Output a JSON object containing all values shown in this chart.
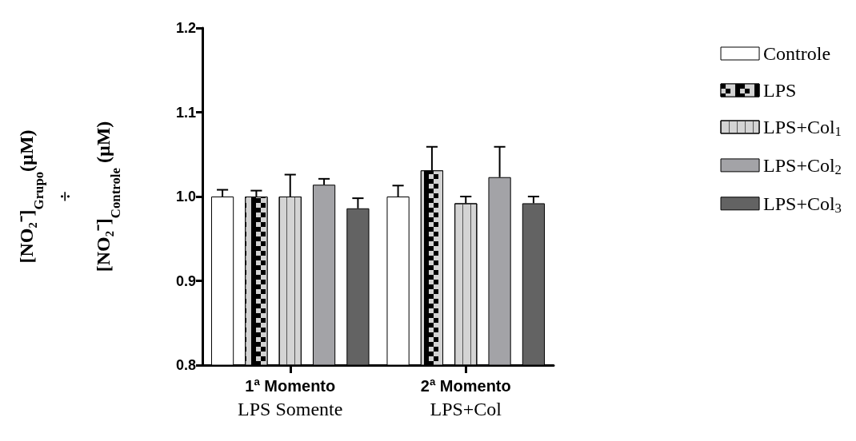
{
  "chart_data": {
    "type": "bar",
    "ylabel": "[NO₂⁻]$_{Grupo}$(µM)\n÷\n[NO₂⁻]$_{Controle}$ (µM)",
    "categories": [
      "1ª Momento\nLPS Somente",
      "2ª Momento\nLPS+Col"
    ],
    "series": [
      {
        "name": "Controle",
        "color": "#ffffff",
        "values": [
          1.0,
          1.0
        ],
        "errors": [
          [
            1.0,
            1.008
          ],
          [
            1.0,
            1.013
          ]
        ]
      },
      {
        "name": "LPS",
        "color": "#000000",
        "values": [
          1.0,
          1.031
        ],
        "errors": [
          [
            1.0,
            1.007
          ],
          [
            1.031,
            1.059
          ]
        ]
      },
      {
        "name": "LPS+Col$_{1}$",
        "color": "#d4d4d4",
        "values": [
          1.0,
          0.992
        ],
        "errors": [
          [
            1.0,
            1.026
          ],
          [
            0.992,
            1.0
          ]
        ]
      },
      {
        "name": "LPS+Col$_{2}$",
        "color": "#a3a3a7",
        "values": [
          1.014,
          1.023
        ],
        "errors": [
          [
            1.014,
            1.021
          ],
          [
            1.023,
            1.059
          ]
        ]
      },
      {
        "name": "LPS+Col$_{3}$",
        "color": "#636363",
        "values": [
          0.986,
          0.992
        ],
        "errors": [
          [
            0.986,
            0.998
          ],
          [
            0.992,
            1.0
          ]
        ]
      }
    ],
    "ylim": [
      0.8,
      1.2
    ],
    "yticks": [
      0.8,
      0.9,
      {
        "value": 1,
        "label": "1.0"
      },
      1.1,
      1.2
    ],
    "grid": false,
    "legend": "right"
  }
}
